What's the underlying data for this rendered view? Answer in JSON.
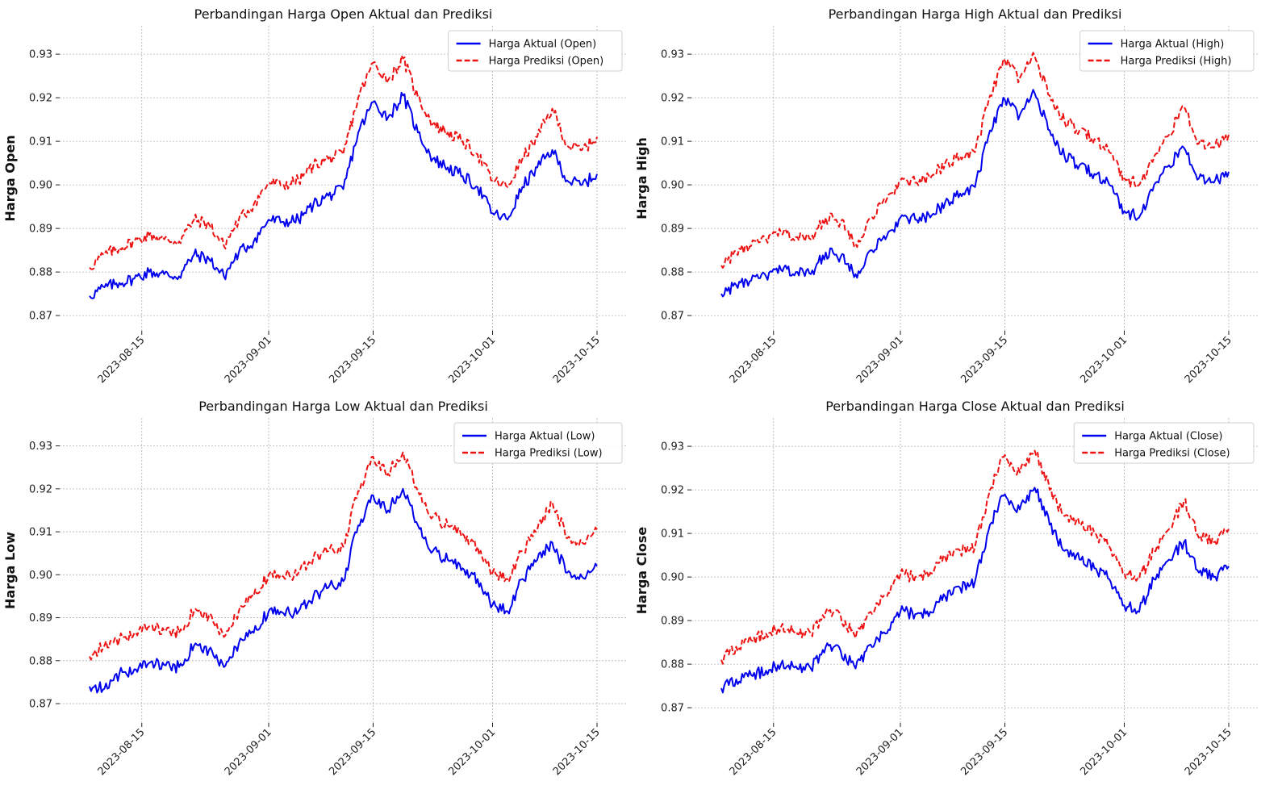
{
  "colors": {
    "actual": "#0000ee",
    "predicted": "#ee1111",
    "grid": "#b0b0b0"
  },
  "x_ticks": [
    "2023-08-15",
    "2023-09-01",
    "2023-09-15",
    "2023-10-01",
    "2023-10-15"
  ],
  "chart_data": [
    {
      "type": "line",
      "title": "Perbandingan Harga Open Aktual dan Prediksi",
      "xlabel": "",
      "ylabel": "Harga Open",
      "xlim": [
        "2023-08-04",
        "2023-10-19"
      ],
      "ylim": [
        0.8665,
        0.9365
      ],
      "yticks": [
        "0.87",
        "0.88",
        "0.89",
        "0.90",
        "0.91",
        "0.92",
        "0.93"
      ],
      "grid": true,
      "legend": "top-right",
      "series": [
        {
          "name": "Harga Aktual (Open)",
          "style": "solid"
        },
        {
          "name": "Harga Prediksi (Open)",
          "style": "dashed"
        }
      ],
      "x": [
        "2023-08-08",
        "2023-08-10",
        "2023-08-12",
        "2023-08-14",
        "2023-08-16",
        "2023-08-18",
        "2023-08-20",
        "2023-08-22",
        "2023-08-24",
        "2023-08-26",
        "2023-08-28",
        "2023-08-30",
        "2023-09-01",
        "2023-09-03",
        "2023-09-05",
        "2023-09-07",
        "2023-09-09",
        "2023-09-11",
        "2023-09-13",
        "2023-09-15",
        "2023-09-17",
        "2023-09-19",
        "2023-09-21",
        "2023-09-23",
        "2023-09-25",
        "2023-09-27",
        "2023-09-29",
        "2023-10-01",
        "2023-10-03",
        "2023-10-05",
        "2023-10-07",
        "2023-10-09",
        "2023-10-11",
        "2023-10-13",
        "2023-10-15"
      ],
      "actual": [
        0.8745,
        0.8765,
        0.8775,
        0.8785,
        0.88,
        0.8795,
        0.879,
        0.884,
        0.883,
        0.879,
        0.8845,
        0.887,
        0.892,
        0.8915,
        0.892,
        0.8955,
        0.8975,
        0.899,
        0.912,
        0.919,
        0.9155,
        0.9205,
        0.912,
        0.906,
        0.904,
        0.902,
        0.8995,
        0.8935,
        0.892,
        0.8995,
        0.904,
        0.908,
        0.901,
        0.9,
        0.9025
      ],
      "predicted": [
        0.881,
        0.884,
        0.8855,
        0.887,
        0.8885,
        0.8875,
        0.887,
        0.892,
        0.891,
        0.886,
        0.892,
        0.8955,
        0.9005,
        0.9,
        0.901,
        0.9045,
        0.906,
        0.907,
        0.92,
        0.928,
        0.924,
        0.929,
        0.92,
        0.914,
        0.912,
        0.91,
        0.907,
        0.901,
        0.8995,
        0.906,
        0.911,
        0.9175,
        0.909,
        0.908,
        0.911
      ]
    },
    {
      "type": "line",
      "title": "Perbandingan Harga High Aktual dan Prediksi",
      "xlabel": "",
      "ylabel": "Harga High",
      "xlim": [
        "2023-08-04",
        "2023-10-19"
      ],
      "ylim": [
        0.8665,
        0.9365
      ],
      "yticks": [
        "0.87",
        "0.88",
        "0.89",
        "0.90",
        "0.91",
        "0.92",
        "0.93"
      ],
      "grid": true,
      "legend": "top-right",
      "series": [
        {
          "name": "Harga Aktual (High)",
          "style": "solid"
        },
        {
          "name": "Harga Prediksi (High)",
          "style": "dashed"
        }
      ],
      "x": [
        "2023-08-08",
        "2023-08-10",
        "2023-08-12",
        "2023-08-14",
        "2023-08-16",
        "2023-08-18",
        "2023-08-20",
        "2023-08-22",
        "2023-08-24",
        "2023-08-26",
        "2023-08-28",
        "2023-08-30",
        "2023-09-01",
        "2023-09-03",
        "2023-09-05",
        "2023-09-07",
        "2023-09-09",
        "2023-09-11",
        "2023-09-13",
        "2023-09-15",
        "2023-09-17",
        "2023-09-19",
        "2023-09-21",
        "2023-09-23",
        "2023-09-25",
        "2023-09-27",
        "2023-09-29",
        "2023-10-01",
        "2023-10-03",
        "2023-10-05",
        "2023-10-07",
        "2023-10-09",
        "2023-10-11",
        "2023-10-13",
        "2023-10-15"
      ],
      "actual": [
        0.875,
        0.877,
        0.878,
        0.879,
        0.8805,
        0.88,
        0.8795,
        0.8845,
        0.8835,
        0.8795,
        0.885,
        0.8875,
        0.8925,
        0.892,
        0.8925,
        0.896,
        0.898,
        0.8995,
        0.9125,
        0.9195,
        0.916,
        0.921,
        0.9125,
        0.9065,
        0.9045,
        0.9025,
        0.9,
        0.894,
        0.8925,
        0.9,
        0.9045,
        0.9085,
        0.9015,
        0.9005,
        0.903
      ],
      "predicted": [
        0.8815,
        0.8845,
        0.886,
        0.8875,
        0.889,
        0.888,
        0.8875,
        0.8925,
        0.8915,
        0.8865,
        0.8925,
        0.896,
        0.901,
        0.9005,
        0.9015,
        0.905,
        0.9065,
        0.9075,
        0.9205,
        0.9285,
        0.9245,
        0.9295,
        0.9205,
        0.9145,
        0.9125,
        0.9105,
        0.9075,
        0.9015,
        0.9,
        0.9065,
        0.9115,
        0.918,
        0.9095,
        0.9085,
        0.9115
      ]
    },
    {
      "type": "line",
      "title": "Perbandingan Harga Low Aktual dan Prediksi",
      "xlabel": "",
      "ylabel": "Harga Low",
      "xlim": [
        "2023-08-04",
        "2023-10-19"
      ],
      "ylim": [
        0.8655,
        0.9365
      ],
      "yticks": [
        "0.87",
        "0.88",
        "0.89",
        "0.90",
        "0.91",
        "0.92",
        "0.93"
      ],
      "grid": true,
      "legend": "top-right",
      "series": [
        {
          "name": "Harga Aktual (Low)",
          "style": "solid"
        },
        {
          "name": "Harga Prediksi (Low)",
          "style": "dashed"
        }
      ],
      "x": [
        "2023-08-08",
        "2023-08-10",
        "2023-08-12",
        "2023-08-14",
        "2023-08-16",
        "2023-08-18",
        "2023-08-20",
        "2023-08-22",
        "2023-08-24",
        "2023-08-26",
        "2023-08-28",
        "2023-08-30",
        "2023-09-01",
        "2023-09-03",
        "2023-09-05",
        "2023-09-07",
        "2023-09-09",
        "2023-09-11",
        "2023-09-13",
        "2023-09-15",
        "2023-09-17",
        "2023-09-19",
        "2023-09-21",
        "2023-09-23",
        "2023-09-25",
        "2023-09-27",
        "2023-09-29",
        "2023-10-01",
        "2023-10-03",
        "2023-10-05",
        "2023-10-07",
        "2023-10-09",
        "2023-10-11",
        "2023-10-13",
        "2023-10-15"
      ],
      "actual": [
        0.874,
        0.8735,
        0.877,
        0.878,
        0.8795,
        0.879,
        0.8785,
        0.8835,
        0.8825,
        0.8785,
        0.884,
        0.8865,
        0.8915,
        0.891,
        0.8915,
        0.895,
        0.897,
        0.8985,
        0.9115,
        0.9185,
        0.915,
        0.92,
        0.9115,
        0.9055,
        0.9035,
        0.9015,
        0.899,
        0.893,
        0.8915,
        0.899,
        0.9035,
        0.9075,
        0.9005,
        0.8995,
        0.902
      ],
      "predicted": [
        0.881,
        0.8835,
        0.885,
        0.8865,
        0.888,
        0.887,
        0.8865,
        0.8915,
        0.8905,
        0.8855,
        0.8915,
        0.895,
        0.9,
        0.8995,
        0.9005,
        0.904,
        0.9055,
        0.9065,
        0.9195,
        0.9275,
        0.9235,
        0.9285,
        0.9195,
        0.9135,
        0.9115,
        0.9095,
        0.9065,
        0.9005,
        0.899,
        0.9055,
        0.9105,
        0.917,
        0.9085,
        0.9075,
        0.9105
      ]
    },
    {
      "type": "line",
      "title": "Perbandingan Harga Close Aktual dan Prediksi",
      "xlabel": "",
      "ylabel": "Harga Close",
      "xlim": [
        "2023-08-04",
        "2023-10-19"
      ],
      "ylim": [
        0.8665,
        0.9365
      ],
      "yticks": [
        "0.87",
        "0.88",
        "0.89",
        "0.90",
        "0.91",
        "0.92",
        "0.93"
      ],
      "grid": true,
      "legend": "top-right",
      "series": [
        {
          "name": "Harga Aktual (Close)",
          "style": "solid"
        },
        {
          "name": "Harga Prediksi (Close)",
          "style": "dashed"
        }
      ],
      "x": [
        "2023-08-08",
        "2023-08-10",
        "2023-08-12",
        "2023-08-14",
        "2023-08-16",
        "2023-08-18",
        "2023-08-20",
        "2023-08-22",
        "2023-08-24",
        "2023-08-26",
        "2023-08-28",
        "2023-08-30",
        "2023-09-01",
        "2023-09-03",
        "2023-09-05",
        "2023-09-07",
        "2023-09-09",
        "2023-09-11",
        "2023-09-13",
        "2023-09-15",
        "2023-09-17",
        "2023-09-19",
        "2023-09-21",
        "2023-09-23",
        "2023-09-25",
        "2023-09-27",
        "2023-09-29",
        "2023-10-01",
        "2023-10-03",
        "2023-10-05",
        "2023-10-07",
        "2023-10-09",
        "2023-10-11",
        "2023-10-13",
        "2023-10-15"
      ],
      "actual": [
        0.8745,
        0.8765,
        0.8775,
        0.8785,
        0.88,
        0.8795,
        0.879,
        0.884,
        0.883,
        0.879,
        0.8845,
        0.887,
        0.892,
        0.8915,
        0.892,
        0.8955,
        0.8975,
        0.899,
        0.912,
        0.919,
        0.9155,
        0.9205,
        0.912,
        0.906,
        0.904,
        0.902,
        0.8995,
        0.8935,
        0.892,
        0.8995,
        0.904,
        0.908,
        0.901,
        0.9,
        0.9025
      ],
      "predicted": [
        0.881,
        0.884,
        0.8855,
        0.887,
        0.8885,
        0.8875,
        0.887,
        0.892,
        0.891,
        0.886,
        0.892,
        0.8955,
        0.9005,
        0.9,
        0.901,
        0.9045,
        0.906,
        0.907,
        0.92,
        0.928,
        0.924,
        0.929,
        0.92,
        0.914,
        0.912,
        0.91,
        0.907,
        0.901,
        0.8995,
        0.906,
        0.911,
        0.9175,
        0.909,
        0.908,
        0.911
      ]
    }
  ]
}
